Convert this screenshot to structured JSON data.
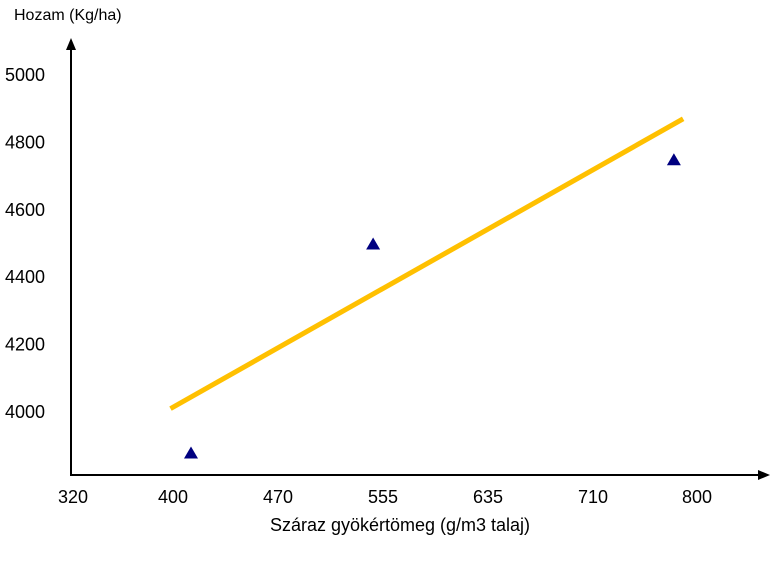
{
  "chart_data": {
    "type": "scatter",
    "title": "",
    "ylabel": "Hozam (Kg/ha)",
    "xlabel": "Száraz gyökértömeg (g/m3 talaj)",
    "x_ticks": [
      320,
      400,
      470,
      555,
      635,
      710,
      800
    ],
    "y_ticks": [
      4000,
      4200,
      4400,
      4600,
      4800,
      5000
    ],
    "x_tick_labels": [
      "320",
      "400",
      "470",
      "555",
      "635",
      "710",
      "800"
    ],
    "y_tick_labels": [
      "4000",
      "4200",
      "4400",
      "4600",
      "4800",
      "5000"
    ],
    "grid": false,
    "series": [
      {
        "marker": "triangle",
        "color": "#000080",
        "points": [
          {
            "x": 412,
            "y": 3880
          },
          {
            "x": 547,
            "y": 4500
          },
          {
            "x": 780,
            "y": 4750
          }
        ]
      }
    ],
    "trendline": {
      "color": "#FFC000",
      "start": {
        "x": 398,
        "y": 4010
      },
      "end": {
        "x": 788,
        "y": 4870
      }
    }
  }
}
